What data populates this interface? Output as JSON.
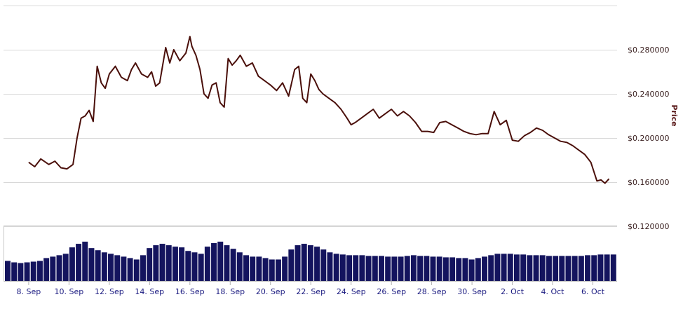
{
  "chart_data": {
    "type": "line",
    "ylabel": "Price",
    "ylim": [
      0.12,
      0.32
    ],
    "yticks": [
      "$0.120000",
      "$0.160000",
      "$0.200000",
      "$0.240000",
      "$0.280000"
    ],
    "ytick_values": [
      0.12,
      0.16,
      0.2,
      0.24,
      0.28
    ],
    "xticks": [
      "8. Sep",
      "10. Sep",
      "12. Sep",
      "14. Sep",
      "16. Sep",
      "18. Sep",
      "20. Sep",
      "22. Sep",
      "24. Sep",
      "26. Sep",
      "28. Sep",
      "30. Sep",
      "2. Oct",
      "4. Oct",
      "6. Oct"
    ],
    "xtick_days": [
      0,
      2,
      4,
      6,
      8,
      10,
      12,
      14,
      16,
      18,
      20,
      22,
      24,
      26,
      28
    ],
    "series": [
      {
        "color": "#4a0f0a",
        "x": [
          0,
          0.3,
          0.6,
          1.0,
          1.3,
          1.6,
          1.9,
          2.2,
          2.4,
          2.6,
          2.8,
          3.0,
          3.2,
          3.4,
          3.6,
          3.8,
          4.0,
          4.3,
          4.6,
          4.9,
          5.1,
          5.3,
          5.6,
          5.9,
          6.1,
          6.3,
          6.5,
          6.8,
          7.0,
          7.2,
          7.5,
          7.8,
          8.0,
          8.1,
          8.3,
          8.5,
          8.7,
          8.9,
          9.1,
          9.3,
          9.5,
          9.7,
          9.9,
          10.1,
          10.3,
          10.5,
          10.8,
          11.1,
          11.4,
          11.7,
          12.0,
          12.3,
          12.6,
          12.9,
          13.2,
          13.4,
          13.6,
          13.8,
          14.0,
          14.2,
          14.4,
          14.6,
          14.9,
          15.2,
          15.5,
          15.8,
          16.0,
          16.2,
          16.5,
          16.8,
          17.1,
          17.4,
          17.7,
          18.0,
          18.3,
          18.6,
          18.9,
          19.2,
          19.5,
          19.8,
          20.1,
          20.4,
          20.7,
          21.0,
          21.3,
          21.6,
          21.9,
          22.2,
          22.5,
          22.8,
          23.1,
          23.4,
          23.7,
          24.0,
          24.3,
          24.6,
          24.9,
          25.2,
          25.5,
          25.8,
          26.1,
          26.4,
          26.7,
          27.0,
          27.3,
          27.6,
          27.9,
          28.2,
          28.4,
          28.6,
          28.8
        ],
        "y": [
          0.178,
          0.174,
          0.181,
          0.176,
          0.179,
          0.173,
          0.172,
          0.176,
          0.2,
          0.218,
          0.22,
          0.225,
          0.215,
          0.265,
          0.25,
          0.245,
          0.258,
          0.265,
          0.255,
          0.252,
          0.262,
          0.268,
          0.258,
          0.255,
          0.26,
          0.247,
          0.25,
          0.282,
          0.268,
          0.28,
          0.27,
          0.277,
          0.292,
          0.283,
          0.275,
          0.262,
          0.24,
          0.236,
          0.248,
          0.25,
          0.232,
          0.228,
          0.272,
          0.266,
          0.27,
          0.275,
          0.265,
          0.268,
          0.256,
          0.252,
          0.248,
          0.243,
          0.25,
          0.238,
          0.262,
          0.265,
          0.236,
          0.232,
          0.258,
          0.252,
          0.244,
          0.24,
          0.236,
          0.232,
          0.226,
          0.218,
          0.212,
          0.214,
          0.218,
          0.222,
          0.226,
          0.218,
          0.222,
          0.226,
          0.22,
          0.224,
          0.22,
          0.214,
          0.206,
          0.206,
          0.205,
          0.214,
          0.215,
          0.212,
          0.209,
          0.206,
          0.204,
          0.203,
          0.204,
          0.204,
          0.224,
          0.212,
          0.216,
          0.198,
          0.197,
          0.202,
          0.205,
          0.209,
          0.207,
          0.203,
          0.2,
          0.197,
          0.196,
          0.193,
          0.189,
          0.185,
          0.178,
          0.161,
          0.162,
          0.159,
          0.163
        ]
      }
    ],
    "volume": {
      "color": "#14145e",
      "values": [
        28,
        26,
        25,
        26,
        27,
        28,
        32,
        34,
        36,
        38,
        47,
        52,
        55,
        46,
        43,
        40,
        38,
        36,
        34,
        32,
        30,
        36,
        46,
        50,
        52,
        50,
        48,
        47,
        42,
        40,
        38,
        48,
        53,
        55,
        50,
        45,
        40,
        36,
        34,
        34,
        32,
        30,
        30,
        34,
        44,
        50,
        52,
        50,
        48,
        44,
        40,
        38,
        37,
        36,
        36,
        36,
        35,
        35,
        35,
        34,
        34,
        34,
        35,
        36,
        35,
        35,
        34,
        34,
        33,
        33,
        32,
        32,
        30,
        32,
        34,
        36,
        38,
        38,
        38,
        37,
        37,
        36,
        36,
        36,
        35,
        35,
        35,
        35,
        35,
        35,
        36,
        36,
        37,
        37,
        37
      ]
    }
  }
}
